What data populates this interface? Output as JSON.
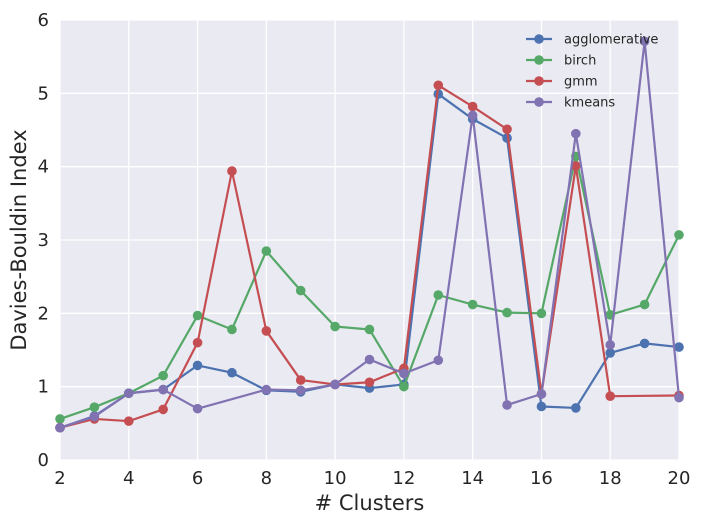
{
  "chart_data": {
    "type": "line",
    "xlabel": "# Clusters",
    "ylabel": "Davies-Bouldin Index",
    "xlim": [
      2,
      20
    ],
    "ylim": [
      0,
      6
    ],
    "xticks": [
      2,
      4,
      6,
      8,
      10,
      12,
      14,
      16,
      18,
      20
    ],
    "yticks": [
      0,
      1,
      2,
      3,
      4,
      5,
      6
    ],
    "grid": true,
    "legend_position": "top-right",
    "background": "#EAEAF2",
    "x": [
      2,
      3,
      4,
      5,
      6,
      7,
      8,
      9,
      10,
      11,
      12,
      13,
      14,
      15,
      16,
      17,
      18,
      19,
      20
    ],
    "series": [
      {
        "name": "agglomerative",
        "color": "#4C72B0",
        "values": [
          0.44,
          0.6,
          0.91,
          0.96,
          1.29,
          1.19,
          0.95,
          0.93,
          1.03,
          0.98,
          1.03,
          4.99,
          4.65,
          4.39,
          0.73,
          0.71,
          1.46,
          1.59,
          1.54
        ]
      },
      {
        "name": "birch",
        "color": "#55A868",
        "values": [
          0.56,
          0.72,
          0.91,
          1.15,
          1.97,
          1.78,
          2.85,
          2.31,
          1.82,
          1.78,
          1.0,
          2.25,
          2.12,
          2.01,
          2.0,
          4.14,
          1.98,
          2.12,
          3.07
        ]
      },
      {
        "name": "gmm",
        "color": "#C44E52",
        "values": [
          0.44,
          0.56,
          0.53,
          0.69,
          1.6,
          3.94,
          1.76,
          1.09,
          1.03,
          1.06,
          1.25,
          5.11,
          4.82,
          4.51,
          0.9,
          4.01,
          0.87,
          null,
          0.88
        ]
      },
      {
        "name": "kmeans",
        "color": "#8172B2",
        "values": [
          0.44,
          0.59,
          0.91,
          0.96,
          0.7,
          null,
          0.96,
          0.95,
          1.03,
          1.37,
          1.18,
          1.36,
          4.7,
          0.75,
          0.9,
          4.45,
          1.57,
          5.71,
          0.85
        ]
      }
    ]
  }
}
